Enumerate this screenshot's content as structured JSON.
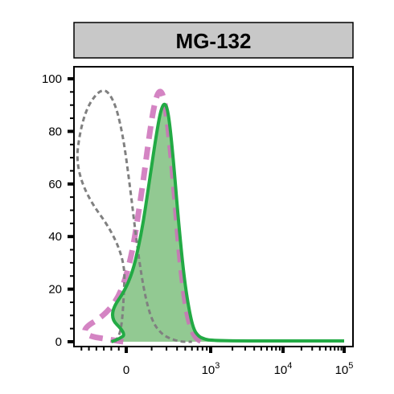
{
  "chart_data": {
    "type": "area",
    "title": "MG-132",
    "xlabel": "",
    "ylabel": "",
    "x_scale": "biexponential",
    "ylim": [
      0,
      100
    ],
    "y_ticks": [
      "0",
      "20",
      "40",
      "60",
      "80",
      "100"
    ],
    "x_tick_labels": [
      {
        "value": 0,
        "base": "0",
        "exp": ""
      },
      {
        "value": 1000,
        "base": "10",
        "exp": "3"
      },
      {
        "value": 10000,
        "base": "10",
        "exp": "4"
      },
      {
        "value": 100000,
        "base": "10",
        "exp": "5"
      }
    ],
    "series": [
      {
        "style": "gray dashed line",
        "color": "#808080",
        "x": [
          -150,
          -80,
          -40,
          -10,
          10,
          30,
          50,
          70,
          90,
          110,
          130,
          160,
          200,
          260,
          340,
          450,
          600
        ],
        "y": [
          0,
          3,
          12,
          35,
          62,
          86,
          97,
          93,
          80,
          60,
          40,
          20,
          8,
          3,
          1,
          0,
          0
        ]
      },
      {
        "style": "pink dashed line",
        "color": "#cc6fb8",
        "x": [
          -40,
          20,
          70,
          110,
          150,
          190,
          220,
          250,
          280,
          320,
          370,
          430,
          500,
          580,
          680,
          800
        ],
        "y": [
          0,
          3,
          12,
          28,
          55,
          80,
          92,
          96,
          93,
          80,
          58,
          32,
          14,
          5,
          1,
          0
        ]
      },
      {
        "style": "green filled area",
        "color": "#22aa44",
        "fill": "#7fbf7f",
        "x": [
          -200,
          -100,
          0,
          60,
          110,
          150,
          190,
          230,
          260,
          290,
          320,
          360,
          410,
          470,
          540,
          620,
          720,
          850,
          1000,
          3000,
          100000
        ],
        "y": [
          0,
          1,
          3,
          10,
          22,
          40,
          62,
          80,
          89,
          91,
          86,
          70,
          48,
          28,
          14,
          5,
          2,
          1,
          0.5,
          0.3,
          0.3
        ]
      }
    ]
  }
}
